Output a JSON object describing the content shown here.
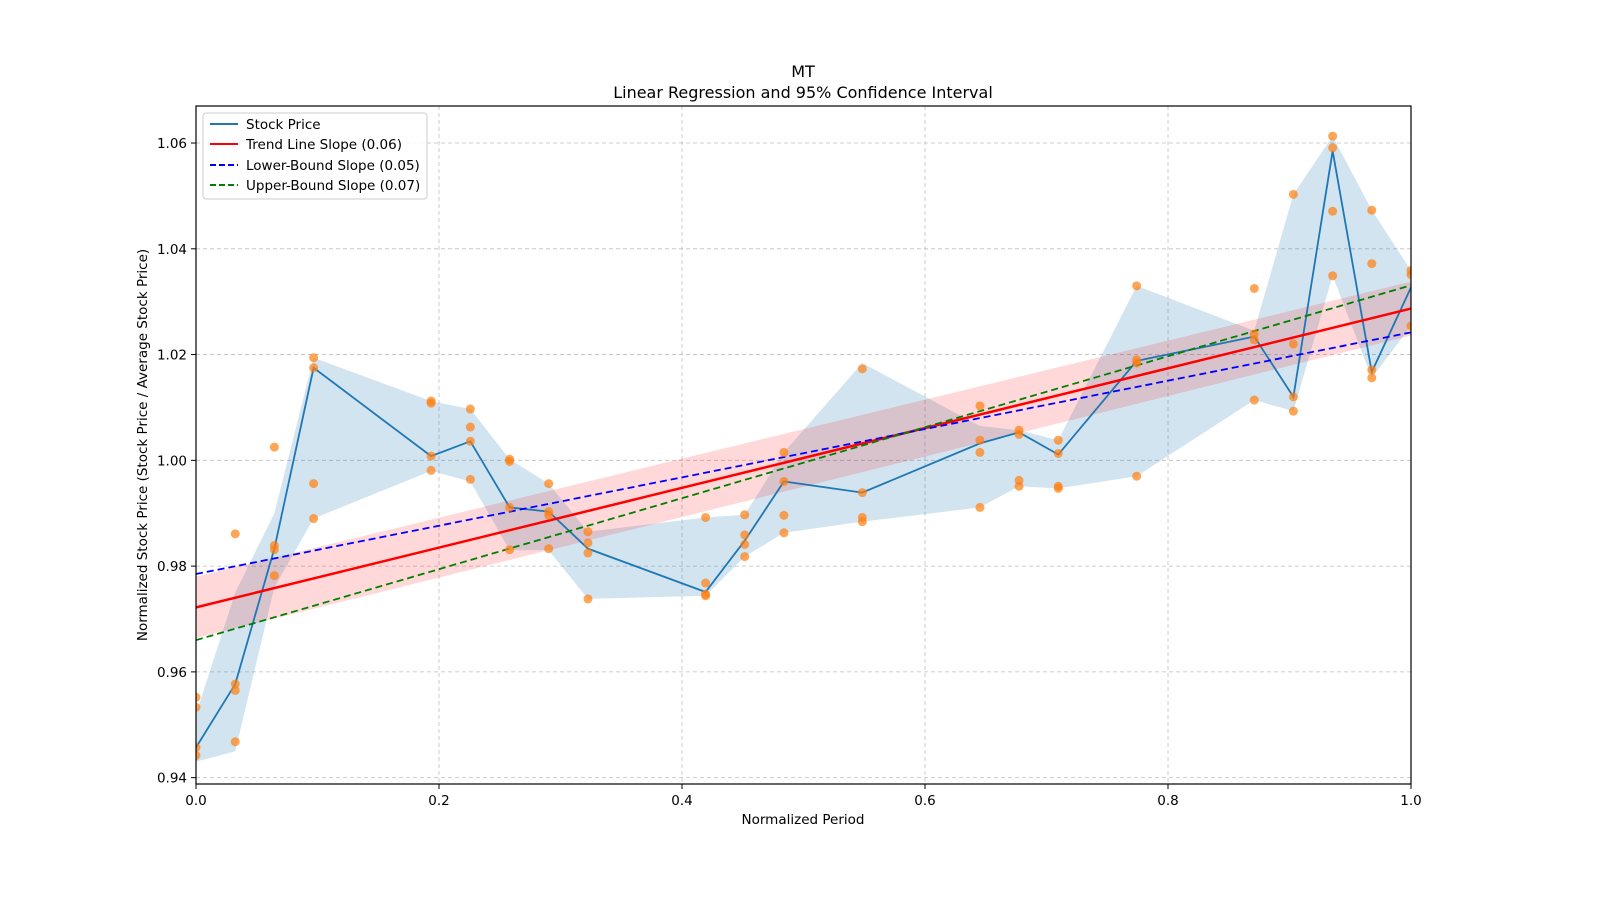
{
  "chart_data": {
    "type": "line",
    "title": "MT",
    "subtitle": "Linear Regression and 95% Confidence Interval",
    "xlabel": "Normalized Period",
    "ylabel": "Normalized Stock Price (Stock Price / Average Stock Price)",
    "xlim": [
      0.0,
      1.0
    ],
    "ylim": [
      0.9388,
      1.067
    ],
    "xticks": [
      0.0,
      0.2,
      0.4,
      0.6,
      0.8,
      1.0
    ],
    "xtick_labels": [
      "0.0",
      "0.2",
      "0.4",
      "0.6",
      "0.8",
      "1.0"
    ],
    "yticks": [
      0.94,
      0.96,
      0.98,
      1.0,
      1.02,
      1.04,
      1.06
    ],
    "ytick_labels": [
      "0.94",
      "0.96",
      "0.98",
      "1.00",
      "1.02",
      "1.04",
      "1.06"
    ],
    "grid": true,
    "legend_position": "top-left",
    "legend": [
      {
        "label": "Stock Price",
        "color": "#1f77b4",
        "style": "solid"
      },
      {
        "label": "Trend Line Slope (0.06)",
        "color": "#ff0000",
        "style": "solid"
      },
      {
        "label": "Lower-Bound Slope (0.05)",
        "color": "#0000ff",
        "style": "dashed"
      },
      {
        "label": "Upper-Bound Slope (0.07)",
        "color": "#008000",
        "style": "dashed"
      }
    ],
    "stock_price": {
      "x": [
        0.0,
        0.0323,
        0.0645,
        0.0968,
        0.1935,
        0.2258,
        0.2581,
        0.2903,
        0.3226,
        0.4194,
        0.4516,
        0.4839,
        0.5484,
        0.6452,
        0.6774,
        0.7097,
        0.7742,
        0.871,
        0.9032,
        0.9355,
        0.9677,
        1.0
      ],
      "y": [
        0.9457,
        0.9577,
        0.9833,
        1.0175,
        1.0008,
        1.0036,
        0.9911,
        0.9903,
        0.9833,
        0.9751,
        0.9848,
        0.996,
        0.9939,
        1.0032,
        1.0053,
        1.0011,
        1.0188,
        1.0234,
        1.012,
        1.0585,
        1.0167,
        1.0327
      ]
    },
    "stock_band": {
      "low": [
        0.943,
        0.945,
        0.976,
        0.989,
        0.998,
        0.996,
        0.983,
        0.983,
        0.9738,
        0.9744,
        0.9818,
        0.9863,
        0.9884,
        0.9911,
        0.9951,
        0.9947,
        0.997,
        1.0114,
        1.0093,
        1.0349,
        1.0156,
        1.0254
      ],
      "high": [
        0.952,
        0.975,
        0.99,
        1.0194,
        1.0112,
        1.0097,
        1.0002,
        0.9956,
        0.9865,
        0.9892,
        0.9897,
        1.0015,
        1.0184,
        1.0065,
        1.0057,
        1.0038,
        1.033,
        1.0245,
        1.0503,
        1.0613,
        1.0473,
        1.0359
      ]
    },
    "scatter": {
      "x": [
        0,
        0,
        0,
        0,
        0.0323,
        0.0323,
        0.0323,
        0.0323,
        0.0645,
        0.0645,
        0.0645,
        0.0645,
        0.0968,
        0.0968,
        0.0968,
        0.0968,
        0.1935,
        0.1935,
        0.1935,
        0.1935,
        0.2258,
        0.2258,
        0.2258,
        0.2258,
        0.2581,
        0.2581,
        0.2581,
        0.2581,
        0.2903,
        0.2903,
        0.2903,
        0.2903,
        0.3226,
        0.3226,
        0.3226,
        0.3226,
        0.4194,
        0.4194,
        0.4194,
        0.4194,
        0.4516,
        0.4516,
        0.4516,
        0.4516,
        0.4839,
        0.4839,
        0.4839,
        0.4839,
        0.5484,
        0.5484,
        0.5484,
        0.5484,
        0.6452,
        0.6452,
        0.6452,
        0.6452,
        0.6774,
        0.6774,
        0.6774,
        0.6774,
        0.7097,
        0.7097,
        0.7097,
        0.7097,
        0.7742,
        0.7742,
        0.7742,
        0.7742,
        0.871,
        0.871,
        0.871,
        0.871,
        0.9032,
        0.9032,
        0.9032,
        0.9032,
        0.9355,
        0.9355,
        0.9355,
        0.9355,
        0.9677,
        0.9677,
        0.9677,
        0.9677,
        1.0,
        1.0,
        1.0
      ],
      "y": [
        0.9552,
        0.9533,
        0.9457,
        0.9442,
        0.9861,
        0.9577,
        0.9565,
        0.9468,
        1.0025,
        0.9839,
        0.9831,
        0.9782,
        1.0194,
        1.0175,
        0.9956,
        0.989,
        1.0112,
        1.0108,
        1.0008,
        0.9981,
        1.0097,
        1.0063,
        1.0036,
        0.9964,
        1.0002,
        0.9998,
        0.9911,
        0.9831,
        0.9956,
        0.9903,
        0.9896,
        0.9833,
        0.9865,
        0.9844,
        0.9825,
        0.9738,
        0.9892,
        0.9768,
        0.9747,
        0.9744,
        0.9897,
        0.9859,
        0.9841,
        0.9818,
        1.0015,
        0.996,
        0.9896,
        0.9863,
        1.0173,
        0.9939,
        0.9892,
        0.9884,
        1.0103,
        1.0038,
        1.0015,
        0.9911,
        1.0057,
        1.0049,
        0.9962,
        0.9951,
        1.0038,
        1.0013,
        0.9951,
        0.9947,
        1.033,
        1.019,
        1.0184,
        0.997,
        1.0325,
        1.0239,
        1.0228,
        1.0114,
        1.0503,
        1.022,
        1.012,
        1.0093,
        1.0613,
        1.0591,
        1.0471,
        1.0349,
        1.0473,
        1.0372,
        1.0171,
        1.0156,
        1.0359,
        1.0351,
        1.0254
      ],
      "color": "#ff7f0e"
    },
    "trend_line": {
      "x": [
        0.0,
        1.0
      ],
      "y": [
        0.9722,
        1.0287
      ],
      "color": "#ff0000"
    },
    "trend_band": {
      "x": [
        0.0,
        1.0
      ],
      "low": [
        0.9664,
        1.0236
      ],
      "high": [
        0.978,
        1.0338
      ],
      "color": "#ffb3b3"
    },
    "lower_bound_line": {
      "x": [
        0.0,
        1.0
      ],
      "y": [
        0.9785,
        1.0242
      ],
      "color": "#0000ff"
    },
    "upper_bound_line": {
      "x": [
        0.0,
        1.0
      ],
      "y": [
        0.966,
        1.0331
      ],
      "color": "#008000"
    }
  }
}
